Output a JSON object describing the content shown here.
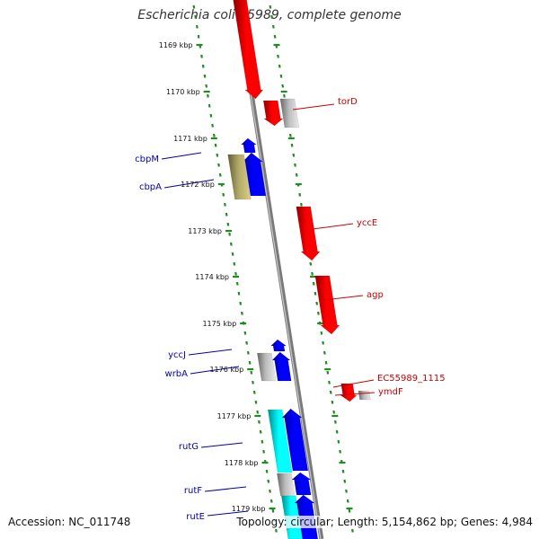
{
  "title": "Escherichia coli 55989, complete genome",
  "footer": {
    "accession": "Accession: NC_011748",
    "summary": "Topology: circular; Length: 5,154,862 bp; Genes: 4,984"
  },
  "colors": {
    "forward_gene": "#ff0000",
    "reverse_gene": "#0000ff",
    "rna_gene": "#00ffff",
    "other_feature": "#bbbbbb",
    "pseudo": "#b0a868",
    "ruler": "#228b22",
    "backbone": "#8f8f8f",
    "forward_label": "#cc0000",
    "reverse_label": "#0000aa"
  },
  "ruler_ticks": [
    {
      "label": "1169 kbp"
    },
    {
      "label": "1170 kbp"
    },
    {
      "label": "1171 kbp"
    },
    {
      "label": "1172 kbp"
    },
    {
      "label": "1173 kbp"
    },
    {
      "label": "1174 kbp"
    },
    {
      "label": "1175 kbp"
    },
    {
      "label": "1176 kbp"
    },
    {
      "label": "1177 kbp"
    },
    {
      "label": "1178 kbp"
    },
    {
      "label": "1179 kbp"
    }
  ],
  "gene_labels": [
    {
      "name": "torD",
      "strand": "forward"
    },
    {
      "name": "yccE",
      "strand": "forward"
    },
    {
      "name": "agp",
      "strand": "forward"
    },
    {
      "name": "EC55989_1115",
      "strand": "forward"
    },
    {
      "name": "ymdF",
      "strand": "forward"
    },
    {
      "name": "cbpM",
      "strand": "reverse"
    },
    {
      "name": "cbpA",
      "strand": "reverse"
    },
    {
      "name": "yccJ",
      "strand": "reverse"
    },
    {
      "name": "wrbA",
      "strand": "reverse"
    },
    {
      "name": "rutG",
      "strand": "reverse"
    },
    {
      "name": "rutF",
      "strand": "reverse"
    },
    {
      "name": "rutE",
      "strand": "reverse"
    }
  ]
}
